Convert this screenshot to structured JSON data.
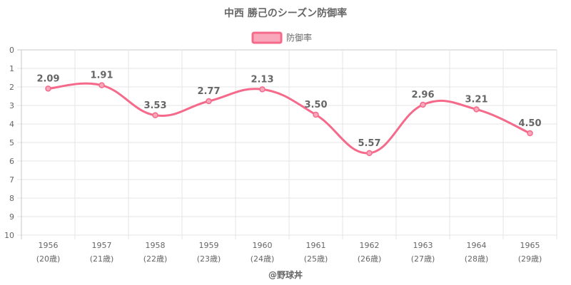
{
  "chart_data": {
    "type": "line",
    "title": "中西 勝己のシーズン防御率",
    "categories": [
      "1956",
      "1957",
      "1958",
      "1959",
      "1960",
      "1961",
      "1962",
      "1963",
      "1964",
      "1965"
    ],
    "sub_labels": [
      "(20歳)",
      "(21歳)",
      "(22歳)",
      "(23歳)",
      "(24歳)",
      "(25歳)",
      "(26歳)",
      "(27歳)",
      "(28歳)",
      "(29歳)"
    ],
    "series": [
      {
        "name": "防御率",
        "values": [
          2.09,
          1.91,
          3.53,
          2.77,
          2.13,
          3.5,
          5.57,
          2.96,
          3.21,
          4.5
        ],
        "labels": [
          "2.09",
          "1.91",
          "3.53",
          "2.77",
          "2.13",
          "3.50",
          "5.57",
          "2.96",
          "3.21",
          "4.50"
        ],
        "color": "#f56a8b",
        "fill": "#f9a8bb"
      }
    ],
    "y_ticks": [
      "0",
      "1",
      "2",
      "3",
      "4",
      "5",
      "6",
      "7",
      "8",
      "9",
      "10"
    ],
    "ylim": [
      0,
      10
    ],
    "y_reversed": true,
    "grid": true,
    "legend_position": "top",
    "footer": "@野球丼"
  }
}
